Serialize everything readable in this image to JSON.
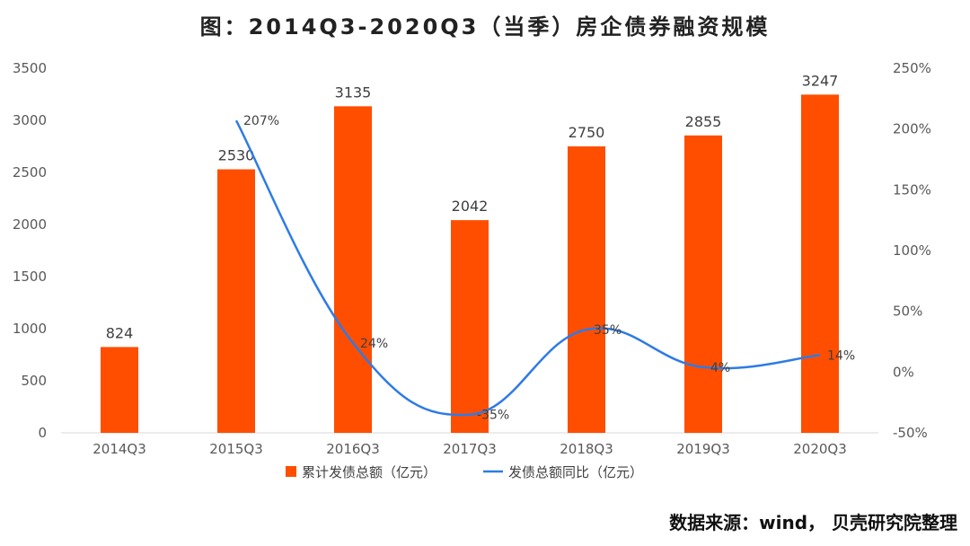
{
  "title": "图：2014Q3-2020Q3（当季）房企债券融资规模",
  "source": "数据来源：wind， 贝壳研究院整理",
  "colors": {
    "bar": "#FF4E00",
    "line": "#2E7BE6",
    "axis": "#D9D9D9"
  },
  "chart_data": {
    "type": "bar",
    "categories": [
      "2014Q3",
      "2015Q3",
      "2016Q3",
      "2017Q3",
      "2018Q3",
      "2019Q3",
      "2020Q3"
    ],
    "series": [
      {
        "name": "累计发债总额（亿元）",
        "type": "bar",
        "axis": "left",
        "values": [
          824,
          2530,
          3135,
          2042,
          2750,
          2855,
          3247
        ],
        "labels": [
          "824",
          "2530",
          "3135",
          "2042",
          "2750",
          "2855",
          "3247"
        ]
      },
      {
        "name": "发债总额同比（亿元）",
        "type": "line",
        "axis": "right",
        "values": [
          null,
          207,
          24,
          -35,
          35,
          4,
          14
        ],
        "labels": [
          "",
          "207%",
          "24%",
          "-35%",
          "35%",
          "4%",
          "14%"
        ]
      }
    ],
    "y_left": {
      "ylim": [
        0,
        3500
      ],
      "ticks": [
        "0",
        "500",
        "1000",
        "1500",
        "2000",
        "2500",
        "3000",
        "3500"
      ]
    },
    "y_right": {
      "ylim": [
        -50,
        250
      ],
      "ticks": [
        "-50%",
        "0%",
        "50%",
        "100%",
        "150%",
        "200%",
        "250%"
      ]
    },
    "legend_position": "bottom",
    "grid": false
  }
}
